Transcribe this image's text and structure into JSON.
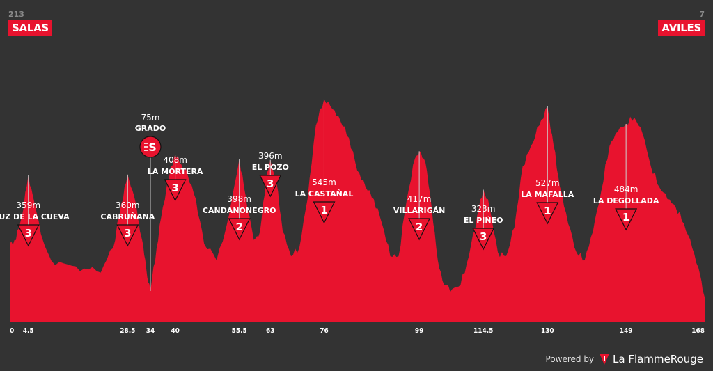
{
  "header": {
    "start_km": "213",
    "start_name": "SALAS",
    "end_km": "7",
    "end_name": "AVILES"
  },
  "footer": {
    "powered_by": "Powered by",
    "brand": "La FlammeRouge"
  },
  "colors": {
    "background": "#333333",
    "profile_fill": "#e8132e",
    "badge": "#e8132e",
    "guide_line": "#cfcfcf",
    "text": "#ffffff"
  },
  "chart_data": {
    "type": "area",
    "xlabel": "",
    "ylabel": "",
    "xlim": [
      0,
      168
    ],
    "ylim": [
      0,
      600
    ],
    "profile": [
      [
        0,
        190
      ],
      [
        1.5,
        200
      ],
      [
        3,
        260
      ],
      [
        4.5,
        359
      ],
      [
        6,
        290
      ],
      [
        8,
        200
      ],
      [
        10,
        150
      ],
      [
        14,
        140
      ],
      [
        18,
        130
      ],
      [
        22,
        120
      ],
      [
        25,
        180
      ],
      [
        27,
        290
      ],
      [
        28.5,
        360
      ],
      [
        30,
        310
      ],
      [
        32,
        200
      ],
      [
        33,
        130
      ],
      [
        34,
        75
      ],
      [
        35.5,
        180
      ],
      [
        37,
        280
      ],
      [
        39,
        380
      ],
      [
        40,
        408
      ],
      [
        41,
        390
      ],
      [
        43,
        360
      ],
      [
        45,
        300
      ],
      [
        47,
        190
      ],
      [
        50,
        150
      ],
      [
        53,
        260
      ],
      [
        55.5,
        398
      ],
      [
        57,
        310
      ],
      [
        59,
        200
      ],
      [
        60.5,
        220
      ],
      [
        62,
        350
      ],
      [
        63,
        396
      ],
      [
        64.5,
        340
      ],
      [
        66,
        220
      ],
      [
        68,
        160
      ],
      [
        70,
        180
      ],
      [
        72,
        300
      ],
      [
        74,
        480
      ],
      [
        76,
        545
      ],
      [
        78,
        520
      ],
      [
        80,
        490
      ],
      [
        82,
        450
      ],
      [
        84,
        370
      ],
      [
        86,
        330
      ],
      [
        88,
        300
      ],
      [
        90,
        240
      ],
      [
        92,
        160
      ],
      [
        94,
        160
      ],
      [
        96,
        300
      ],
      [
        98,
        400
      ],
      [
        99,
        417
      ],
      [
        100.5,
        390
      ],
      [
        102,
        280
      ],
      [
        103.5,
        150
      ],
      [
        105,
        90
      ],
      [
        107,
        80
      ],
      [
        109,
        90
      ],
      [
        111,
        160
      ],
      [
        113,
        260
      ],
      [
        114.5,
        323
      ],
      [
        116,
        280
      ],
      [
        118,
        170
      ],
      [
        120,
        160
      ],
      [
        122,
        230
      ],
      [
        124,
        380
      ],
      [
        126,
        430
      ],
      [
        128,
        480
      ],
      [
        130,
        527
      ],
      [
        131.5,
        430
      ],
      [
        133,
        330
      ],
      [
        135,
        240
      ],
      [
        137,
        170
      ],
      [
        139,
        150
      ],
      [
        141,
        220
      ],
      [
        143,
        320
      ],
      [
        145,
        430
      ],
      [
        147,
        465
      ],
      [
        149,
        484
      ],
      [
        151,
        500
      ],
      [
        153,
        460
      ],
      [
        155,
        380
      ],
      [
        157,
        330
      ],
      [
        159,
        300
      ],
      [
        161,
        280
      ],
      [
        163,
        240
      ],
      [
        165,
        180
      ],
      [
        167,
        110
      ],
      [
        168,
        60
      ]
    ],
    "tick_labels": [
      "0",
      "4.5",
      "28.5",
      "34",
      "40",
      "55.5",
      "63",
      "76",
      "99",
      "114.5",
      "130",
      "149",
      "168"
    ],
    "climbs": [
      {
        "km": 4.5,
        "altitude": "359m",
        "name": "CRUZ DE LA CUEVA",
        "category": "3"
      },
      {
        "km": 28.5,
        "altitude": "360m",
        "name": "CABRUÑANA",
        "category": "3"
      },
      {
        "km": 40,
        "altitude": "408m",
        "name": "LA MORTERA",
        "category": "3"
      },
      {
        "km": 55.5,
        "altitude": "398m",
        "name": "CANDANONEGRO",
        "category": "2"
      },
      {
        "km": 63,
        "altitude": "396m",
        "name": "EL POZO",
        "category": "3"
      },
      {
        "km": 76,
        "altitude": "545m",
        "name": "LA CASTAÑAL",
        "category": "1"
      },
      {
        "km": 99,
        "altitude": "417m",
        "name": "VILLARIGÁN",
        "category": "2"
      },
      {
        "km": 114.5,
        "altitude": "323m",
        "name": "EL PIÑEO",
        "category": "3"
      },
      {
        "km": 130,
        "altitude": "527m",
        "name": "LA MAFALLA",
        "category": "1"
      },
      {
        "km": 149,
        "altitude": "484m",
        "name": "LA DEGOLLADA",
        "category": "1"
      }
    ],
    "sprints": [
      {
        "km": 34,
        "altitude": "75m",
        "name": "GRADO",
        "symbol": "S"
      }
    ]
  }
}
